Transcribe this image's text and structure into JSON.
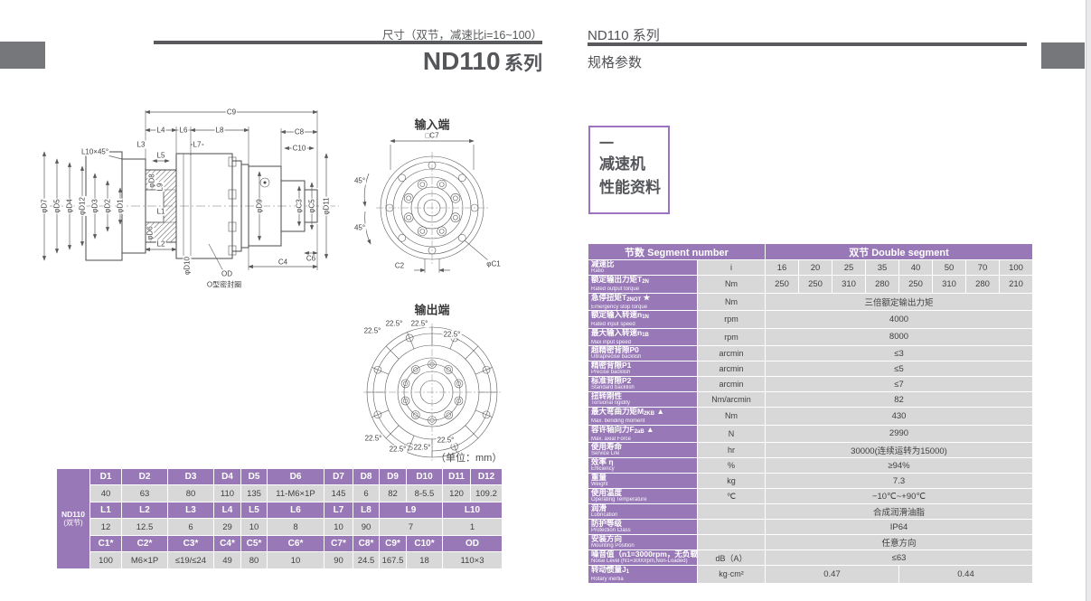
{
  "page": {
    "left_note": "尺寸（双节，减速比i=16~100）",
    "left_title_model": "ND110",
    "left_title_series": "系列",
    "right_title": "ND110 系列",
    "right_subtitle": "规格参数",
    "unit_note": "（单位：mm）"
  },
  "badge": {
    "dash": "一",
    "line1": "减速机",
    "line2": "性能资料"
  },
  "colors": {
    "purple": "#9878b6",
    "cell_gray": "#d8d8d8",
    "rule_gray": "#595a5e",
    "block_gray": "#76777a",
    "badge_border": "#9c74c2"
  },
  "spec_table": {
    "header_left": "节数 Segment number",
    "header_right": "双节 Double segment",
    "rows": [
      {
        "zh": "减速比",
        "en": "Ratio",
        "unit": "i",
        "values": [
          "16",
          "20",
          "25",
          "35",
          "40",
          "50",
          "70",
          "100"
        ]
      },
      {
        "zh": "额定输出力矩T",
        "sub": "2N",
        "en": "Rated output torque",
        "unit": "Nm",
        "values": [
          "250",
          "250",
          "310",
          "280",
          "250",
          "310",
          "280",
          "210"
        ]
      },
      {
        "zh": "急停扭矩T",
        "sub": "2NOT",
        "suffix": " ★",
        "en": "Emergency stop torque",
        "unit": "Nm",
        "span": "三倍额定输出力矩"
      },
      {
        "zh": "额定输入转速n",
        "sub": "1N",
        "en": "Rated input speed",
        "unit": "rpm",
        "span": "4000"
      },
      {
        "zh": "最大输入转速n",
        "sub": "1B",
        "en": "Max input speed",
        "unit": "rpm",
        "span": "8000"
      },
      {
        "zh": "超精密背隙P0",
        "en": "Ultraprecise backlish",
        "unit": "arcmin",
        "span": "≤3"
      },
      {
        "zh": "精密背隙P1",
        "en": "Precise backlish",
        "unit": "arcmin",
        "span": "≤5"
      },
      {
        "zh": "标准背隙P2",
        "en": "Standard backlish",
        "unit": "arcmin",
        "span": "≤7"
      },
      {
        "zh": "扭转刚性",
        "en": "Torsional rigidity",
        "unit": "Nm/arcmin",
        "span": "82"
      },
      {
        "zh": "最大弯曲力矩M",
        "sub": "2KB",
        "suffix": " ▲",
        "en": "Max. bending moment",
        "unit": "Nm",
        "span": "430"
      },
      {
        "zh": "容许轴向力F",
        "sub": "2aB",
        "suffix": " ▲",
        "en": "Max. axial Force",
        "unit": "N",
        "span": "2990"
      },
      {
        "zh": "使用寿命",
        "en": "Service Life",
        "unit": "hr",
        "span": "30000(连续运转为15000)"
      },
      {
        "zh": "效率 η",
        "en": "Efficiency",
        "unit": "%",
        "span": "≥94%"
      },
      {
        "zh": "重量",
        "en": "Weight",
        "unit": "kg",
        "span": "7.3"
      },
      {
        "zh": "使用温度",
        "en": "Operating Temperature",
        "unit": "℃",
        "span": "−10℃~+90℃"
      },
      {
        "zh": "润滑",
        "en": "Lubrication",
        "unit": "",
        "span": "合成润滑油脂"
      },
      {
        "zh": "防护等级",
        "en": "Protection Class",
        "unit": "",
        "span": "IP64"
      },
      {
        "zh": "安装方向",
        "en": "Mounting Position",
        "unit": "",
        "span": "任意方向"
      },
      {
        "zh": "噪音值（n1=3000rpm，无负载）",
        "en": "Noise Level (N1=3000rpm,Non-Loaded)",
        "unit": "dB（A）",
        "span": "≤63"
      },
      {
        "zh": "转动惯量J",
        "sub": "1",
        "en": "Rotary inertia",
        "unit": "kg·cm²",
        "half": [
          "0.47",
          "0.44"
        ]
      }
    ]
  },
  "dim_table": {
    "model_line1": "ND110",
    "model_line2": "(双节)",
    "groups": [
      {
        "heads": [
          {
            "t": "D1"
          },
          {
            "t": "D2"
          },
          {
            "t": "D3"
          },
          {
            "t": "D4"
          },
          {
            "t": "D5"
          },
          {
            "t": "D6"
          },
          {
            "t": "D7"
          },
          {
            "t": "D8"
          },
          {
            "t": "D9"
          },
          {
            "t": "D10"
          },
          {
            "t": "D11"
          },
          {
            "t": "D12"
          }
        ],
        "vals": [
          {
            "t": "40"
          },
          {
            "t": "63"
          },
          {
            "t": "80"
          },
          {
            "t": "110"
          },
          {
            "t": "135"
          },
          {
            "t": "11-M6×1P"
          },
          {
            "t": "145"
          },
          {
            "t": "6"
          },
          {
            "t": "82"
          },
          {
            "t": "8-5.5"
          },
          {
            "t": "120"
          },
          {
            "t": "109.2"
          }
        ]
      },
      {
        "heads": [
          {
            "t": "L1"
          },
          {
            "t": "L2"
          },
          {
            "t": "L3"
          },
          {
            "t": "L4"
          },
          {
            "t": "L5"
          },
          {
            "t": "L6"
          },
          {
            "t": "L7"
          },
          {
            "t": "L8"
          },
          {
            "t": "L9",
            "s": 2
          },
          {
            "t": "L10",
            "s": 2
          }
        ],
        "vals": [
          {
            "t": "12"
          },
          {
            "t": "12.5"
          },
          {
            "t": "6"
          },
          {
            "t": "29"
          },
          {
            "t": "10"
          },
          {
            "t": "8"
          },
          {
            "t": "10"
          },
          {
            "t": "90"
          },
          {
            "t": "7",
            "s": 2
          },
          {
            "t": "1",
            "s": 2
          }
        ]
      },
      {
        "heads": [
          {
            "t": "C1*"
          },
          {
            "t": "C2*"
          },
          {
            "t": "C3*"
          },
          {
            "t": "C4*"
          },
          {
            "t": "C5*"
          },
          {
            "t": "C6*"
          },
          {
            "t": "C7*"
          },
          {
            "t": "C8*"
          },
          {
            "t": "C9*"
          },
          {
            "t": "C10*"
          },
          {
            "t": "OD",
            "s": 2
          }
        ],
        "vals": [
          {
            "t": "100"
          },
          {
            "t": "M6×1P"
          },
          {
            "t": "≤19/≤24"
          },
          {
            "t": "49"
          },
          {
            "t": "80"
          },
          {
            "t": "10"
          },
          {
            "t": "90"
          },
          {
            "t": "24.5"
          },
          {
            "t": "167.5"
          },
          {
            "t": "18"
          },
          {
            "t": "110×3",
            "s": 2
          }
        ]
      }
    ]
  },
  "drawing": {
    "side_labels": [
      {
        "id": "c9",
        "t": "C9"
      },
      {
        "id": "l4",
        "t": "L4"
      },
      {
        "id": "l6",
        "t": "L6"
      },
      {
        "id": "l8",
        "t": "L8"
      },
      {
        "id": "l3",
        "t": "L3"
      },
      {
        "id": "l7",
        "t": "L7"
      },
      {
        "id": "l10x45",
        "t": "L10×45°"
      },
      {
        "id": "l5",
        "t": "L5"
      },
      {
        "id": "c8",
        "t": "C8"
      },
      {
        "id": "c10",
        "t": "C10"
      },
      {
        "id": "pd7",
        "t": "φD7"
      },
      {
        "id": "pd5",
        "t": "φD5"
      },
      {
        "id": "pd4",
        "t": "φD4"
      },
      {
        "id": "pd12",
        "t": "φD12"
      },
      {
        "id": "pd3",
        "t": "φD3"
      },
      {
        "id": "pd2",
        "t": "φD2"
      },
      {
        "id": "pd1",
        "t": "φD1"
      },
      {
        "id": "pd8",
        "t": "φD8"
      },
      {
        "id": "l9",
        "t": "L9"
      },
      {
        "id": "pd6",
        "t": "φD6"
      },
      {
        "id": "l1",
        "t": "L1"
      },
      {
        "id": "l2",
        "t": "L2"
      },
      {
        "id": "pd10",
        "t": "φD10"
      },
      {
        "id": "od1",
        "t": "OD"
      },
      {
        "id": "od2",
        "t": "O型密封圈"
      },
      {
        "id": "pd9",
        "t": "φD9"
      },
      {
        "id": "pc3",
        "t": "φC3"
      },
      {
        "id": "pc5",
        "t": "φC5"
      },
      {
        "id": "pd11",
        "t": "φD11"
      },
      {
        "id": "c6",
        "t": "C6"
      },
      {
        "id": "c4",
        "t": "C4"
      }
    ],
    "input_labels": [
      {
        "id": "in_title",
        "t": "输入端"
      },
      {
        "id": "c7",
        "t": "□C7"
      },
      {
        "id": "a45a",
        "t": "45°"
      },
      {
        "id": "a45b",
        "t": "45°"
      },
      {
        "id": "pc1",
        "t": "φC1"
      },
      {
        "id": "c2",
        "t": "C2"
      }
    ],
    "output_labels": [
      {
        "id": "out_title",
        "t": "输出端"
      },
      {
        "id": "t1",
        "t": "22.5°"
      },
      {
        "id": "t2",
        "t": "22.5°"
      },
      {
        "id": "tl",
        "t": "22.5°"
      },
      {
        "id": "tr",
        "t": "22.5°"
      },
      {
        "id": "bl",
        "t": "22.5°"
      },
      {
        "id": "b1",
        "t": "22.5°"
      },
      {
        "id": "b2",
        "t": "22.5°"
      },
      {
        "id": "br",
        "t": "22.5°"
      }
    ]
  }
}
